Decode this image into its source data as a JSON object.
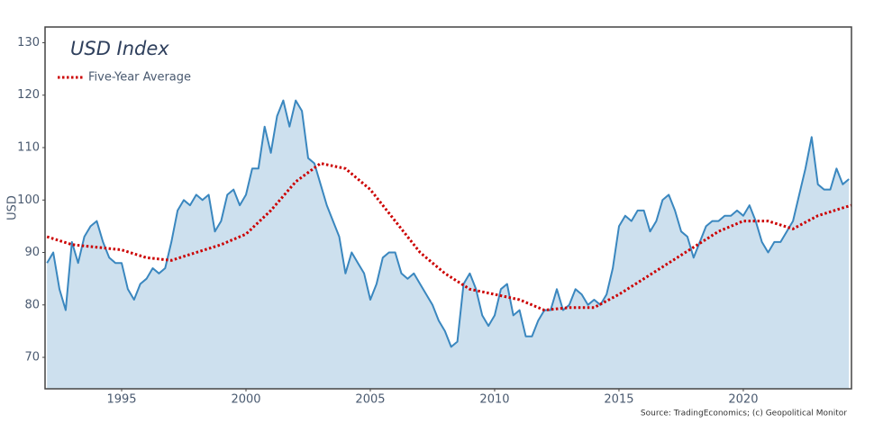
{
  "chart_data": {
    "type": "area-line",
    "title": "USD Index",
    "y_label": "USD",
    "source": "Source: TradingEconomics; (c) Geopolitical Monitor",
    "xlim": [
      1991.92,
      2024.35
    ],
    "ylim": [
      64,
      133
    ],
    "xticks": [
      1995,
      2000,
      2005,
      2010,
      2015,
      2020
    ],
    "yticks": [
      70,
      80,
      90,
      100,
      110,
      120,
      130
    ],
    "grid": false,
    "legend": "top-left",
    "series": [
      {
        "name": "USD Index",
        "color": "#3a87bf",
        "fill": "#cde0ee",
        "x": [
          1992,
          1992.25,
          1992.5,
          1992.75,
          1993,
          1993.25,
          1993.5,
          1993.75,
          1994,
          1994.25,
          1994.5,
          1994.75,
          1995,
          1995.25,
          1995.5,
          1995.75,
          1996,
          1996.25,
          1996.5,
          1996.75,
          1997,
          1997.25,
          1997.5,
          1997.75,
          1998,
          1998.25,
          1998.5,
          1998.75,
          1999,
          1999.25,
          1999.5,
          1999.75,
          2000,
          2000.25,
          2000.5,
          2000.75,
          2001,
          2001.25,
          2001.5,
          2001.75,
          2002,
          2002.25,
          2002.5,
          2002.75,
          2003,
          2003.25,
          2003.5,
          2003.75,
          2004,
          2004.25,
          2004.5,
          2004.75,
          2005,
          2005.25,
          2005.5,
          2005.75,
          2006,
          2006.25,
          2006.5,
          2006.75,
          2007,
          2007.25,
          2007.5,
          2007.75,
          2008,
          2008.25,
          2008.5,
          2008.75,
          2009,
          2009.25,
          2009.5,
          2009.75,
          2010,
          2010.25,
          2010.5,
          2010.75,
          2011,
          2011.25,
          2011.5,
          2011.75,
          2012,
          2012.25,
          2012.5,
          2012.75,
          2013,
          2013.25,
          2013.5,
          2013.75,
          2014,
          2014.25,
          2014.5,
          2014.75,
          2015,
          2015.25,
          2015.5,
          2015.75,
          2016,
          2016.25,
          2016.5,
          2016.75,
          2017,
          2017.25,
          2017.5,
          2017.75,
          2018,
          2018.25,
          2018.5,
          2018.75,
          2019,
          2019.25,
          2019.5,
          2019.75,
          2020,
          2020.25,
          2020.5,
          2020.75,
          2021,
          2021.25,
          2021.5,
          2021.75,
          2022,
          2022.25,
          2022.5,
          2022.75,
          2023,
          2023.25,
          2023.5,
          2023.75,
          2024,
          2024.25
        ],
        "values": [
          88,
          90,
          83,
          79,
          92,
          88,
          93,
          95,
          96,
          92,
          89,
          88,
          88,
          83,
          81,
          84,
          85,
          87,
          86,
          87,
          92,
          98,
          100,
          99,
          101,
          100,
          101,
          94,
          96,
          101,
          102,
          99,
          101,
          106,
          106,
          114,
          109,
          116,
          119,
          114,
          119,
          117,
          108,
          107,
          103,
          99,
          96,
          93,
          86,
          90,
          88,
          86,
          81,
          84,
          89,
          90,
          90,
          86,
          85,
          86,
          84,
          82,
          80,
          77,
          75,
          72,
          73,
          84,
          86,
          83,
          78,
          76,
          78,
          83,
          84,
          78,
          79,
          74,
          74,
          77,
          79,
          79,
          83,
          79,
          80,
          83,
          82,
          80,
          81,
          80,
          82,
          87,
          95,
          97,
          96,
          98,
          98,
          94,
          96,
          100,
          101,
          98,
          94,
          93,
          89,
          92,
          95,
          96,
          96,
          97,
          97,
          98,
          97,
          99,
          96,
          92,
          90,
          92,
          92,
          94,
          96,
          101,
          106,
          112,
          103,
          102,
          102,
          106,
          103,
          104
        ]
      },
      {
        "name": "Five-Year Average",
        "color": "#cc0000",
        "x": [
          1992,
          1993,
          1994,
          1995,
          1996,
          1997,
          1998,
          1999,
          2000,
          2001,
          2002,
          2003,
          2004,
          2005,
          2006,
          2007,
          2008,
          2009,
          2010,
          2011,
          2012,
          2013,
          2014,
          2015,
          2016,
          2017,
          2018,
          2019,
          2020,
          2021,
          2022,
          2023,
          2024,
          2024.35
        ],
        "values": [
          93,
          91.5,
          91,
          90.5,
          89,
          88.5,
          90,
          91.5,
          93.5,
          98,
          103.5,
          107,
          106,
          102,
          96,
          90,
          86,
          83,
          82,
          81,
          79,
          79.5,
          79.5,
          82,
          85,
          88,
          91,
          94,
          96,
          96,
          94.5,
          97,
          98.5,
          99
        ]
      }
    ]
  }
}
